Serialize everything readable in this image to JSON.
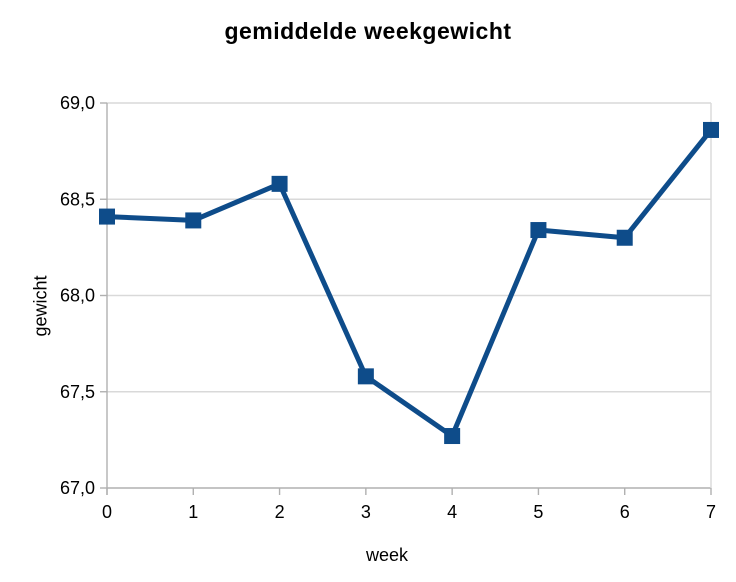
{
  "title": "gemiddelde weekgewicht",
  "colors": {
    "series": "#0e4c8a",
    "grid": "#d9d9d9",
    "axis": "#b0b0b0",
    "text": "#000000",
    "background": "#ffffff"
  },
  "chart_data": {
    "type": "line",
    "title": "gemiddelde weekgewicht",
    "xlabel": "week",
    "ylabel": "gewicht",
    "x": [
      0,
      1,
      2,
      3,
      4,
      5,
      6,
      7
    ],
    "values": [
      68.41,
      68.39,
      68.58,
      67.58,
      67.27,
      68.34,
      68.3,
      68.86
    ],
    "xlim": [
      0,
      7
    ],
    "ylim": [
      67.0,
      69.0
    ],
    "ytick_step": 0.5,
    "ytick_labels": [
      "67,0",
      "67,5",
      "68,0",
      "68,5",
      "69,0"
    ],
    "xtick_labels": [
      "0",
      "1",
      "2",
      "3",
      "4",
      "5",
      "6",
      "7"
    ],
    "grid": "horizontal",
    "legend": "none",
    "marker": "square",
    "decimal_separator": ","
  }
}
